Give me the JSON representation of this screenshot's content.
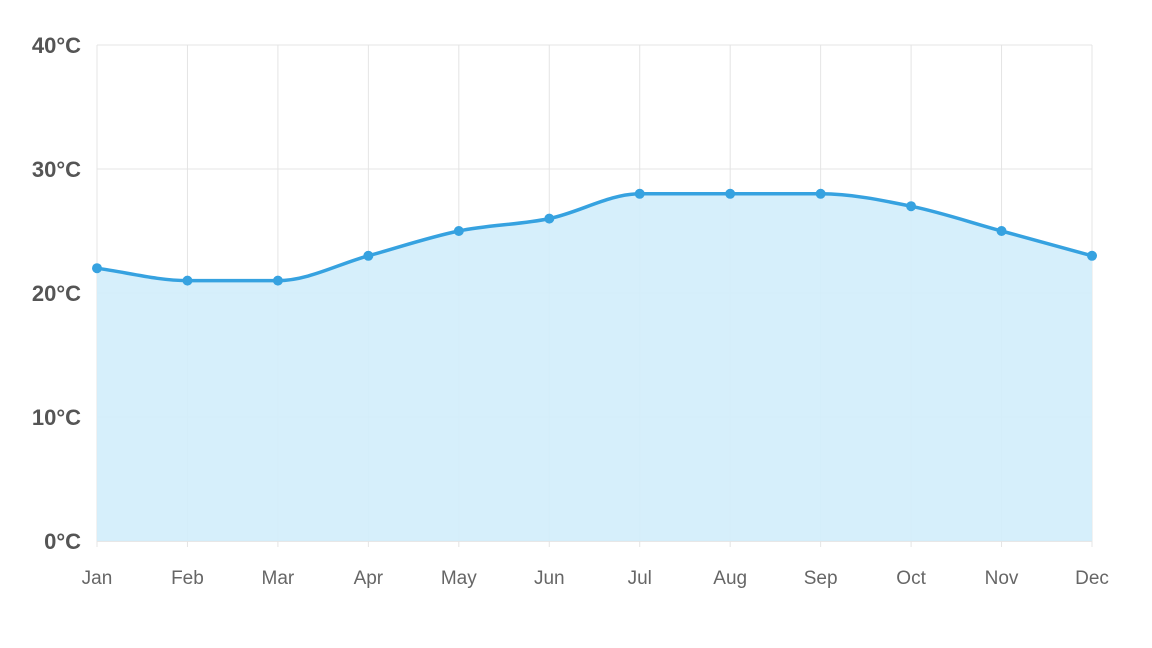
{
  "chart_data": {
    "type": "area",
    "title": "",
    "xlabel": "",
    "ylabel": "",
    "categories": [
      "Jan",
      "Feb",
      "Mar",
      "Apr",
      "May",
      "Jun",
      "Jul",
      "Aug",
      "Sep",
      "Oct",
      "Nov",
      "Dec"
    ],
    "series": [
      {
        "values": [
          22,
          21,
          21,
          23,
          25,
          26,
          28,
          28,
          28,
          27,
          25,
          23
        ],
        "line_color": "#36a2e0",
        "fill_color": "#d3eefb"
      }
    ],
    "ylim": [
      0,
      40
    ],
    "yticks": [
      0,
      10,
      20,
      30,
      40
    ],
    "ytick_labels": [
      "0°C",
      "10°C",
      "20°C",
      "30°C",
      "40°C"
    ],
    "grid": true,
    "smooth": true,
    "markers": true
  }
}
